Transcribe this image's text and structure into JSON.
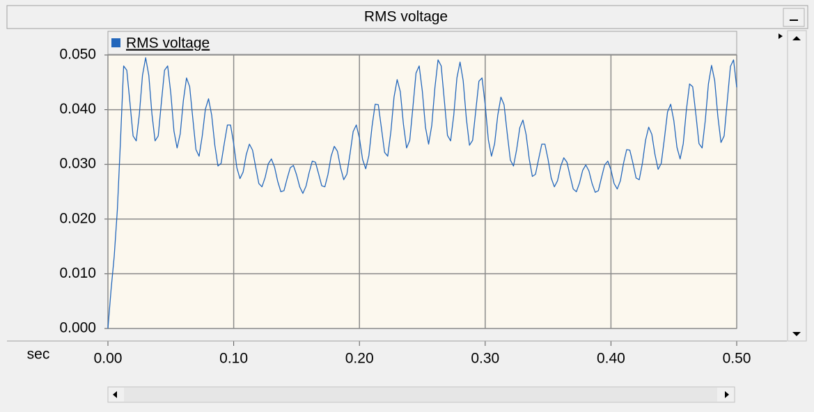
{
  "chart_data": {
    "type": "line",
    "title": "RMS voltage",
    "x_label": "sec",
    "x": [
      0,
      0.0025,
      0.005,
      0.0075,
      0.01,
      0.0125,
      0.015,
      0.0175,
      0.02,
      0.0225,
      0.025,
      0.0275,
      0.03,
      0.0325,
      0.035,
      0.0375,
      0.04,
      0.0425,
      0.045,
      0.0475,
      0.05,
      0.0525,
      0.055,
      0.0575,
      0.06,
      0.0625,
      0.065,
      0.0675,
      0.07,
      0.0725,
      0.075,
      0.0775,
      0.08,
      0.0825,
      0.085,
      0.0875,
      0.09,
      0.0925,
      0.095,
      0.0975,
      0.1,
      0.1025,
      0.105,
      0.1075,
      0.11,
      0.1125,
      0.115,
      0.1175,
      0.12,
      0.1225,
      0.125,
      0.1275,
      0.13,
      0.1325,
      0.135,
      0.1375,
      0.14,
      0.1425,
      0.145,
      0.1475,
      0.15,
      0.1525,
      0.155,
      0.1575,
      0.16,
      0.1625,
      0.165,
      0.1675,
      0.17,
      0.1725,
      0.175,
      0.1775,
      0.18,
      0.1825,
      0.185,
      0.1875,
      0.19,
      0.1925,
      0.195,
      0.1975,
      0.2,
      0.2025,
      0.205,
      0.2075,
      0.21,
      0.2125,
      0.215,
      0.2175,
      0.22,
      0.2225,
      0.225,
      0.2275,
      0.23,
      0.2325,
      0.235,
      0.2375,
      0.24,
      0.2425,
      0.245,
      0.2475,
      0.25,
      0.2525,
      0.255,
      0.2575,
      0.26,
      0.2625,
      0.265,
      0.2675,
      0.27,
      0.2725,
      0.275,
      0.2775,
      0.28,
      0.2825,
      0.285,
      0.2875,
      0.29,
      0.2925,
      0.295,
      0.2975,
      0.3,
      0.3025,
      0.305,
      0.3075,
      0.31,
      0.3125,
      0.315,
      0.3175,
      0.32,
      0.3225,
      0.325,
      0.3275,
      0.33,
      0.3325,
      0.335,
      0.3375,
      0.34,
      0.3425,
      0.345,
      0.3475,
      0.35,
      0.3525,
      0.355,
      0.3575,
      0.36,
      0.3625,
      0.365,
      0.3675,
      0.37,
      0.3725,
      0.375,
      0.3775,
      0.38,
      0.3825,
      0.385,
      0.3875,
      0.39,
      0.3925,
      0.395,
      0.3975,
      0.4,
      0.4025,
      0.405,
      0.4075,
      0.41,
      0.4125,
      0.415,
      0.4175,
      0.42,
      0.4225,
      0.425,
      0.4275,
      0.43,
      0.4325,
      0.435,
      0.4375,
      0.44,
      0.4425,
      0.445,
      0.4475,
      0.45,
      0.4525,
      0.455,
      0.4575,
      0.46,
      0.4625,
      0.465,
      0.4675,
      0.47,
      0.4725,
      0.475,
      0.4775,
      0.48,
      0.4825,
      0.485,
      0.4875,
      0.49,
      0.4925,
      0.495,
      0.4975,
      0.5
    ],
    "series": [
      {
        "name": "RMS voltage",
        "color": "#2266bb",
        "values": [
          0,
          0.0071,
          0.0132,
          0.0217,
          0.0344,
          0.048,
          0.0472,
          0.0413,
          0.0352,
          0.0343,
          0.0392,
          0.0463,
          0.0495,
          0.0463,
          0.0392,
          0.0343,
          0.0352,
          0.0413,
          0.0472,
          0.048,
          0.043,
          0.0361,
          0.033,
          0.0356,
          0.0417,
          0.0458,
          0.0442,
          0.0384,
          0.0327,
          0.0315,
          0.0352,
          0.0401,
          0.042,
          0.039,
          0.0335,
          0.0297,
          0.0302,
          0.0338,
          0.0372,
          0.0372,
          0.0338,
          0.0294,
          0.0274,
          0.0286,
          0.0318,
          0.0337,
          0.0326,
          0.0295,
          0.0265,
          0.0259,
          0.0276,
          0.0301,
          0.031,
          0.0295,
          0.0269,
          0.025,
          0.0252,
          0.0274,
          0.0294,
          0.0298,
          0.0281,
          0.0259,
          0.0247,
          0.026,
          0.0285,
          0.0306,
          0.0304,
          0.0283,
          0.0261,
          0.0259,
          0.0282,
          0.0315,
          0.0333,
          0.0324,
          0.0294,
          0.0272,
          0.0282,
          0.0319,
          0.036,
          0.0372,
          0.0348,
          0.0309,
          0.0292,
          0.0316,
          0.0369,
          0.041,
          0.0409,
          0.0366,
          0.0322,
          0.0315,
          0.036,
          0.0423,
          0.0455,
          0.0433,
          0.0373,
          0.033,
          0.0344,
          0.0404,
          0.0467,
          0.048,
          0.0434,
          0.0368,
          0.0337,
          0.0371,
          0.044,
          0.0491,
          0.048,
          0.0417,
          0.0353,
          0.0343,
          0.039,
          0.0458,
          0.0487,
          0.0453,
          0.0384,
          0.0335,
          0.0344,
          0.0398,
          0.0452,
          0.0458,
          0.0409,
          0.0345,
          0.0315,
          0.0338,
          0.039,
          0.0423,
          0.0409,
          0.0357,
          0.0308,
          0.0297,
          0.0327,
          0.0367,
          0.0381,
          0.0355,
          0.031,
          0.0278,
          0.0282,
          0.031,
          0.0337,
          0.0337,
          0.0309,
          0.0275,
          0.0259,
          0.027,
          0.0296,
          0.0312,
          0.0304,
          0.0279,
          0.0255,
          0.025,
          0.0266,
          0.0289,
          0.0299,
          0.0288,
          0.0265,
          0.0249,
          0.0252,
          0.0276,
          0.0299,
          0.0306,
          0.029,
          0.0265,
          0.0255,
          0.027,
          0.0302,
          0.0327,
          0.0326,
          0.0302,
          0.0275,
          0.0272,
          0.0302,
          0.0344,
          0.0368,
          0.0355,
          0.0318,
          0.0291,
          0.0302,
          0.0347,
          0.0396,
          0.041,
          0.038,
          0.0331,
          0.031,
          0.0338,
          0.04,
          0.0447,
          0.0442,
          0.0392,
          0.0338,
          0.033,
          0.038,
          0.0447,
          0.0481,
          0.0453,
          0.0388,
          0.034,
          0.0352,
          0.0416,
          0.0479,
          0.0491,
          0.0441
        ]
      }
    ],
    "xlim": [
      0,
      0.5
    ],
    "ylim": [
      0,
      0.05
    ],
    "xticks": [
      {
        "value": 0,
        "label": "0.00"
      },
      {
        "value": 0.1,
        "label": "0.10"
      },
      {
        "value": 0.2,
        "label": "0.20"
      },
      {
        "value": 0.3,
        "label": "0.30"
      },
      {
        "value": 0.4,
        "label": "0.40"
      },
      {
        "value": 0.5,
        "label": "0.50"
      }
    ],
    "yticks": [
      {
        "value": 0,
        "label": "0.000"
      },
      {
        "value": 0.01,
        "label": "0.010"
      },
      {
        "value": 0.02,
        "label": "0.020"
      },
      {
        "value": 0.03,
        "label": "0.030"
      },
      {
        "value": 0.04,
        "label": "0.040"
      },
      {
        "value": 0.05,
        "label": "0.050"
      }
    ],
    "grid": true
  }
}
